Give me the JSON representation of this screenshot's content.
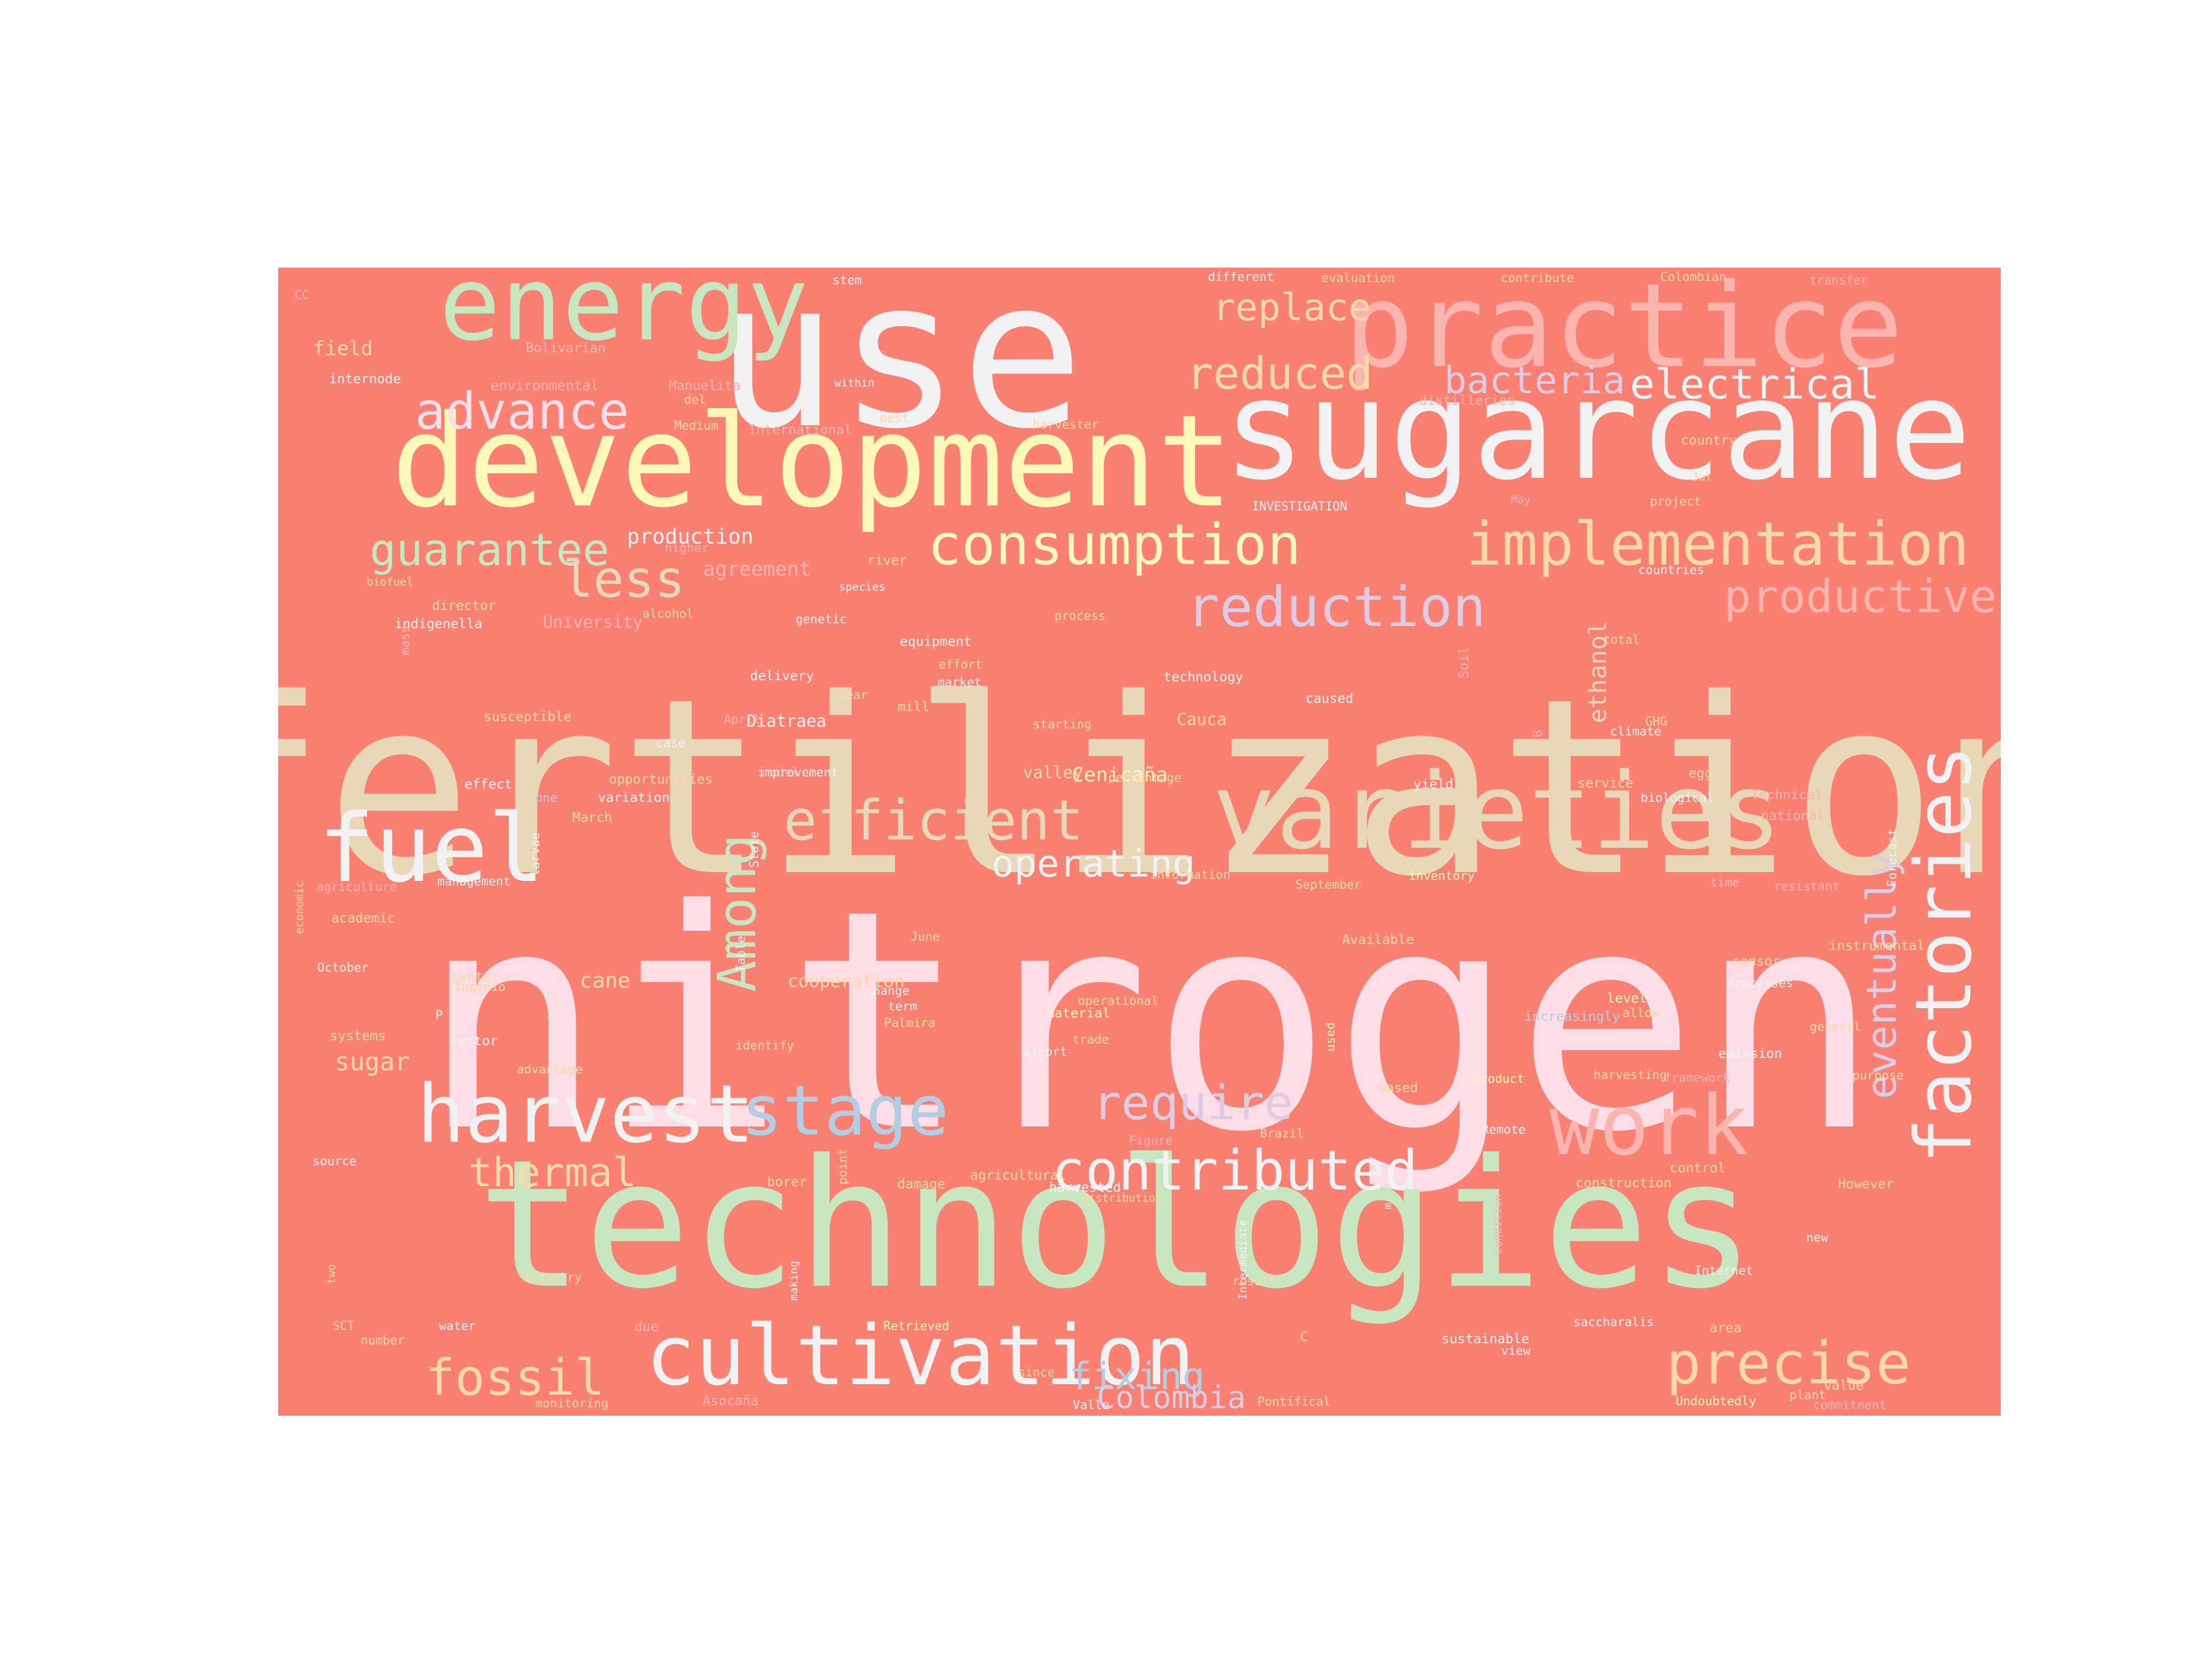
{
  "background_color": "#ffffff",
  "cloud_background": "#fa8072",
  "words": [
    {
      "text": "nitrogen",
      "color": "#fddde6"
    },
    {
      "text": "fertilization",
      "color": "#e8d8b8"
    },
    {
      "text": "technologies",
      "color": "#c8e6c0"
    },
    {
      "text": "use",
      "color": "#f2f2f2"
    },
    {
      "text": "sugarcane",
      "color": "#f2f2f2"
    },
    {
      "text": "development",
      "color": "#fff8b8"
    },
    {
      "text": "practice",
      "color": "#fbb4ae"
    },
    {
      "text": "energy",
      "color": "#c8e6c0"
    },
    {
      "text": "varieties",
      "color": "#e8d8b8"
    },
    {
      "text": "fuel",
      "color": "#f2f2f2"
    },
    {
      "text": "harvest",
      "color": "#f2f2f2"
    },
    {
      "text": "cultivation",
      "color": "#f2f2f2"
    },
    {
      "text": "stage",
      "color": "#b3cde3"
    },
    {
      "text": "factories",
      "color": "#f2f2f2"
    },
    {
      "text": "work",
      "color": "#fbb4ae"
    },
    {
      "text": "implementation",
      "color": "#fed9a6"
    },
    {
      "text": "consumption",
      "color": "#fff8b8"
    },
    {
      "text": "reduction",
      "color": "#decbe4"
    },
    {
      "text": "efficient",
      "color": "#e8d8b8"
    },
    {
      "text": "contributed",
      "color": "#f2f2f2"
    },
    {
      "text": "precise",
      "color": "#fed9a6"
    },
    {
      "text": "productive",
      "color": "#fbb4ae"
    },
    {
      "text": "Among",
      "color": "#c8e6c0"
    },
    {
      "text": "advance",
      "color": "#fddde6"
    },
    {
      "text": "guarantee",
      "color": "#c8e6c0"
    },
    {
      "text": "reduced",
      "color": "#fed9a6"
    },
    {
      "text": "replace",
      "color": "#fed9a6"
    },
    {
      "text": "bacteria",
      "color": "#decbe4"
    },
    {
      "text": "electrical",
      "color": "#f2f2f2"
    },
    {
      "text": "less",
      "color": "#e8d8b8"
    },
    {
      "text": "require",
      "color": "#decbe4"
    },
    {
      "text": "operating",
      "color": "#f2f2f2"
    },
    {
      "text": "eventually",
      "color": "#decbe4"
    },
    {
      "text": "fossil",
      "color": "#fed9a6"
    },
    {
      "text": "thermal",
      "color": "#fed9a6"
    },
    {
      "text": "fixing",
      "color": "#b3cde3"
    },
    {
      "text": "Colombia",
      "color": "#decbe4"
    },
    {
      "text": "sugar",
      "color": "#fed9a6"
    },
    {
      "text": "production",
      "color": "#f2f2f2"
    },
    {
      "text": "agreement",
      "color": "#fbb4ae"
    },
    {
      "text": "ethanol",
      "color": "#e8d8b8"
    },
    {
      "text": "cane",
      "color": "#fed9a6"
    },
    {
      "text": "Cenicaña",
      "color": "#fff8b8"
    },
    {
      "text": "Diatraea",
      "color": "#f2f2f2"
    },
    {
      "text": "Cauca",
      "color": "#fed9a6"
    },
    {
      "text": "field",
      "color": "#fed9a6"
    },
    {
      "text": "cooperation",
      "color": "#fed9a6"
    },
    {
      "text": "valley",
      "color": "#fed9a6"
    },
    {
      "text": "University",
      "color": "#fbb4ae"
    },
    {
      "text": "CC",
      "color": "#fbb4ae"
    },
    {
      "text": "Bolivarian",
      "color": "#fbb4ae"
    },
    {
      "text": "internode",
      "color": "#f2f2f2"
    },
    {
      "text": "environmental",
      "color": "#fbb4ae"
    },
    {
      "text": "Manuelita",
      "color": "#fbb4ae"
    },
    {
      "text": "del",
      "color": "#fed9a6"
    },
    {
      "text": "Medium",
      "color": "#fed9a6"
    },
    {
      "text": "International",
      "color": "#fbb4ae"
    },
    {
      "text": "pest",
      "color": "#fed9a6"
    },
    {
      "text": "within",
      "color": "#f2f2f2"
    },
    {
      "text": "stem",
      "color": "#f2f2f2"
    },
    {
      "text": "different",
      "color": "#f2f2f2"
    },
    {
      "text": "evaluation",
      "color": "#fed9a6"
    },
    {
      "text": "contribute",
      "color": "#fed9a6"
    },
    {
      "text": "Colombian",
      "color": "#fed9a6"
    },
    {
      "text": "transfer",
      "color": "#fbb4ae"
    },
    {
      "text": "distilleries",
      "color": "#fbb4ae"
    },
    {
      "text": "harvester",
      "color": "#fed9a6"
    },
    {
      "text": "country",
      "color": "#fed9a6"
    },
    {
      "text": "Jul",
      "color": "#fed9a6"
    },
    {
      "text": "May",
      "color": "#fbb4ae"
    },
    {
      "text": "project",
      "color": "#fed9a6"
    },
    {
      "text": "INVESTIGATION",
      "color": "#f2f2f2"
    },
    {
      "text": "higher",
      "color": "#fbb4ae"
    },
    {
      "text": "biofuel",
      "color": "#fed9a6"
    },
    {
      "text": "species",
      "color": "#f2f2f2"
    },
    {
      "text": "river",
      "color": "#fed9a6"
    },
    {
      "text": "countries",
      "color": "#f2f2f2"
    },
    {
      "text": "director",
      "color": "#fed9a6"
    },
    {
      "text": "indigenella",
      "color": "#f2f2f2"
    },
    {
      "text": "alcohol",
      "color": "#fed9a6"
    },
    {
      "text": "genetic",
      "color": "#f2f2f2"
    },
    {
      "text": "process",
      "color": "#fed9a6"
    },
    {
      "text": "equipment",
      "color": "#f2f2f2"
    },
    {
      "text": "mass",
      "color": "#fbb4ae"
    },
    {
      "text": "total",
      "color": "#fed9a6"
    },
    {
      "text": "Soil",
      "color": "#fbb4ae"
    },
    {
      "text": "effort",
      "color": "#fed9a6"
    },
    {
      "text": "market",
      "color": "#f2f2f2"
    },
    {
      "text": "technology",
      "color": "#f2f2f2"
    },
    {
      "text": "delivery",
      "color": "#f2f2f2"
    },
    {
      "text": "year",
      "color": "#fed9a6"
    },
    {
      "text": "mill",
      "color": "#fed9a6"
    },
    {
      "text": "caused",
      "color": "#f2f2f2"
    },
    {
      "text": "GHG",
      "color": "#fed9a6"
    },
    {
      "text": "susceptible",
      "color": "#fed9a6"
    },
    {
      "text": "April",
      "color": "#fbb4ae"
    },
    {
      "text": "starting",
      "color": "#fed9a6"
    },
    {
      "text": "climate",
      "color": "#f2f2f2"
    },
    {
      "text": "B",
      "color": "#fbb4ae"
    },
    {
      "text": "case",
      "color": "#f2f2f2"
    },
    {
      "text": "model",
      "color": "#fbb4ae"
    },
    {
      "text": "improvement",
      "color": "#f2f2f2"
    },
    {
      "text": "opportunities",
      "color": "#fed9a6"
    },
    {
      "text": "percentage",
      "color": "#fed9a6"
    },
    {
      "text": "yield",
      "color": "#f2f2f2"
    },
    {
      "text": "service",
      "color": "#fed9a6"
    },
    {
      "text": "egg",
      "color": "#fed9a6"
    },
    {
      "text": "biological",
      "color": "#f2f2f2"
    },
    {
      "text": "Technical",
      "color": "#fbb4ae"
    },
    {
      "text": "national",
      "color": "#fbb4ae"
    },
    {
      "text": "effect",
      "color": "#f2f2f2"
    },
    {
      "text": "variation",
      "color": "#f2f2f2"
    },
    {
      "text": "one",
      "color": "#b3cde3"
    },
    {
      "text": "March",
      "color": "#fed9a6"
    },
    {
      "text": "larvae",
      "color": "#f2f2f2"
    },
    {
      "text": "State",
      "color": "#f2f2f2"
    },
    {
      "text": "Forecast",
      "color": "#f2f2f2"
    },
    {
      "text": "information",
      "color": "#fed9a6"
    },
    {
      "text": "inventory",
      "color": "#fff8b8"
    },
    {
      "text": "time",
      "color": "#fbb4ae"
    },
    {
      "text": "resistant",
      "color": "#fbb4ae"
    },
    {
      "text": "agriculture",
      "color": "#fbb4ae"
    },
    {
      "text": "management",
      "color": "#f2f2f2"
    },
    {
      "text": "September",
      "color": "#fed9a6"
    },
    {
      "text": "economic",
      "color": "#fed9a6"
    },
    {
      "text": "academic",
      "color": "#fed9a6"
    },
    {
      "text": "June",
      "color": "#fed9a6"
    },
    {
      "text": "Available",
      "color": "#fed9a6"
    },
    {
      "text": "instrumental",
      "color": "#fed9a6"
    },
    {
      "text": "October",
      "color": "#f2f2f2"
    },
    {
      "text": "Table",
      "color": "#f2f2f2"
    },
    {
      "text": "sensor",
      "color": "#fed9a6"
    },
    {
      "text": "center",
      "color": "#fed9a6"
    },
    {
      "text": "Ingenio",
      "color": "#fed9a6"
    },
    {
      "text": "change",
      "color": "#f2f2f2"
    },
    {
      "text": "processes",
      "color": "#f2f2f2"
    },
    {
      "text": "term",
      "color": "#f2f2f2"
    },
    {
      "text": "P",
      "color": "#f2f2f2"
    },
    {
      "text": "operational",
      "color": "#fed9a6"
    },
    {
      "text": "material",
      "color": "#fff8b8"
    },
    {
      "text": "level",
      "color": "#fff8b8"
    },
    {
      "text": "allow",
      "color": "#fed9a6"
    },
    {
      "text": "increasingly",
      "color": "#b3cde3"
    },
    {
      "text": "Palmira",
      "color": "#fed9a6"
    },
    {
      "text": "systems",
      "color": "#fed9a6"
    },
    {
      "text": "sector",
      "color": "#f2f2f2"
    },
    {
      "text": "trade",
      "color": "#fed9a6"
    },
    {
      "text": "general",
      "color": "#fed9a6"
    },
    {
      "text": "used",
      "color": "#fff8b8"
    },
    {
      "text": "identify",
      "color": "#fed9a6"
    },
    {
      "text": "export",
      "color": "#f2f2f2"
    },
    {
      "text": "emission",
      "color": "#f2f2f2"
    },
    {
      "text": "advantage",
      "color": "#fed9a6"
    },
    {
      "text": "harvesting",
      "color": "#fed9a6"
    },
    {
      "text": "framework",
      "color": "#fbb4ae"
    },
    {
      "text": "purpose",
      "color": "#fed9a6"
    },
    {
      "text": "product",
      "color": "#fff8b8"
    },
    {
      "text": "based",
      "color": "#fed9a6"
    },
    {
      "text": "Figure",
      "color": "#fbb4ae"
    },
    {
      "text": "Brazil",
      "color": "#fed9a6"
    },
    {
      "text": "Remote",
      "color": "#f2f2f2"
    },
    {
      "text": "source",
      "color": "#f2f2f2"
    },
    {
      "text": "point",
      "color": "#fed9a6"
    },
    {
      "text": "borer",
      "color": "#fed9a6"
    },
    {
      "text": "damage",
      "color": "#fed9a6"
    },
    {
      "text": "agricultural",
      "color": "#fed9a6"
    },
    {
      "text": "harvested",
      "color": "#f2f2f2"
    },
    {
      "text": "control",
      "color": "#fed9a6"
    },
    {
      "text": "construction",
      "color": "#fed9a6"
    },
    {
      "text": "However",
      "color": "#fed9a6"
    },
    {
      "text": "distribution",
      "color": "#fed9a6"
    },
    {
      "text": "m",
      "color": "#f2f2f2"
    },
    {
      "text": "condition",
      "color": "#fbb4ae"
    },
    {
      "text": "new",
      "color": "#f2f2f2"
    },
    {
      "text": "two",
      "color": "#fed9a6"
    },
    {
      "text": "industry",
      "color": "#fed9a6"
    },
    {
      "text": "making",
      "color": "#f2f2f2"
    },
    {
      "text": "Intermediate",
      "color": "#f2f2f2"
    },
    {
      "text": "Internet",
      "color": "#f2f2f2"
    },
    {
      "text": "result",
      "color": "#fed9a6"
    },
    {
      "text": "SCT",
      "color": "#fed9a6"
    },
    {
      "text": "water",
      "color": "#f2f2f2"
    },
    {
      "text": "number",
      "color": "#fed9a6"
    },
    {
      "text": "due",
      "color": "#fbb4ae"
    },
    {
      "text": "Retrieved",
      "color": "#fff8b8"
    },
    {
      "text": "C",
      "color": "#fed9a6"
    },
    {
      "text": "saccharalis",
      "color": "#f2f2f2"
    },
    {
      "text": "area",
      "color": "#fed9a6"
    },
    {
      "text": "sustainable",
      "color": "#f2f2f2"
    },
    {
      "text": "view",
      "color": "#f2f2f2"
    },
    {
      "text": "since",
      "color": "#fed9a6"
    },
    {
      "text": "value",
      "color": "#fed9a6"
    },
    {
      "text": "monitoring",
      "color": "#fed9a6"
    },
    {
      "text": "Asocaña",
      "color": "#fbb4ae"
    },
    {
      "text": "Valle",
      "color": "#f2f2f2"
    },
    {
      "text": "Pontifical",
      "color": "#fed9a6"
    },
    {
      "text": "Undoubtedly",
      "color": "#fff8b8"
    },
    {
      "text": "plant",
      "color": "#fed9a6"
    },
    {
      "text": "commitment",
      "color": "#fbb4ae"
    },
    {
      "text": "scientific",
      "color": "#f2f2f2"
    }
  ]
}
